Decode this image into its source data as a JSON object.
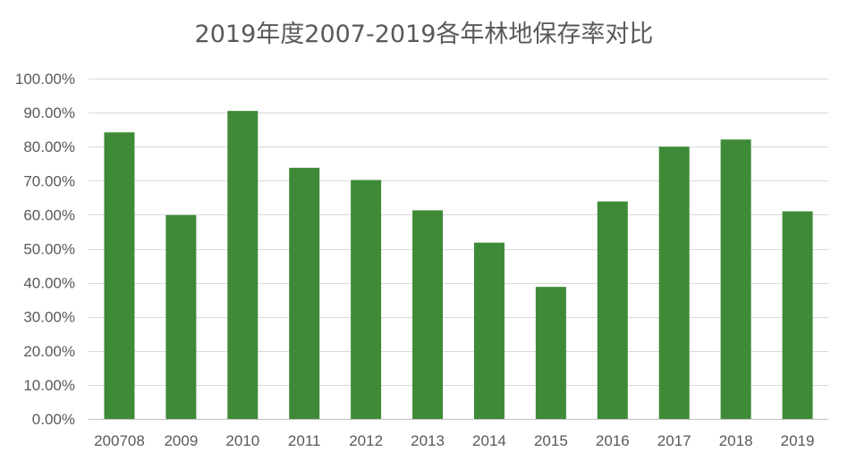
{
  "chart_data": {
    "type": "bar",
    "title": "2019年度2007-2019各年林地保存率对比",
    "xlabel": "",
    "ylabel": "",
    "categories": [
      "200708",
      "2009",
      "2010",
      "2011",
      "2012",
      "2013",
      "2014",
      "2015",
      "2016",
      "2017",
      "2018",
      "2019"
    ],
    "values": [
      84.2,
      59.9,
      90.5,
      73.8,
      70.2,
      61.3,
      51.8,
      38.8,
      63.9,
      80.0,
      82.1,
      61.0
    ],
    "ylim": [
      0,
      100
    ],
    "yticks": [
      0,
      10,
      20,
      30,
      40,
      50,
      60,
      70,
      80,
      90,
      100
    ],
    "ytick_labels": [
      "0.00%",
      "10.00%",
      "20.00%",
      "30.00%",
      "40.00%",
      "50.00%",
      "60.00%",
      "70.00%",
      "80.00%",
      "90.00%",
      "100.00%"
    ],
    "grid": true,
    "legend": "none",
    "bar_color": "#3f8a37"
  }
}
